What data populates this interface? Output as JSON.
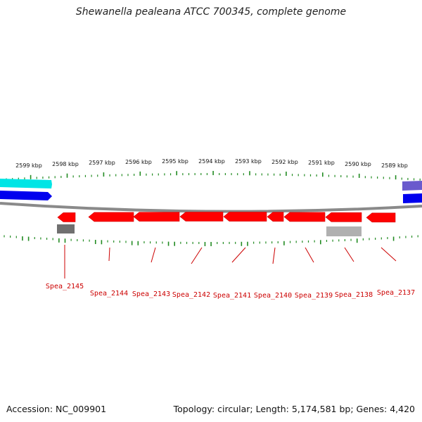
{
  "title": "Shewanella pealeana ATCC 700345, complete genome",
  "footer": {
    "accession": "Accession: NC_009901",
    "summary": "Topology: circular; Length: 5,174,581 bp; Genes: 4,420"
  },
  "colors": {
    "backbone": "#8a8a8a",
    "forward_gene": "#ff0000",
    "reverse_gene": "#ff0000",
    "ticks": "#228b22",
    "label": "#cc0000",
    "feature_cyan": "#00e5e5",
    "feature_blue": "#0000ee",
    "feature_slate": "#6a5acd",
    "feature_gray": "#707070",
    "feature_lightgray": "#b0b0b0"
  },
  "chart_data": {
    "type": "genome-map",
    "title": "Shewanella pealeana ATCC 700345, complete genome",
    "tick_labels": [
      "2599 kbp",
      "2598 kbp",
      "2597 kbp",
      "2596 kbp",
      "2595 kbp",
      "2594 kbp",
      "2593 kbp",
      "2592 kbp",
      "2591 kbp",
      "2590 kbp",
      "2589 kbp"
    ],
    "genes": [
      {
        "name": "Spea_2145",
        "strand": "reverse"
      },
      {
        "name": "Spea_2144",
        "strand": "reverse"
      },
      {
        "name": "Spea_2143",
        "strand": "reverse"
      },
      {
        "name": "Spea_2142",
        "strand": "reverse"
      },
      {
        "name": "Spea_2141",
        "strand": "reverse"
      },
      {
        "name": "Spea_2140",
        "strand": "reverse"
      },
      {
        "name": "Spea_2139",
        "strand": "reverse"
      },
      {
        "name": "Spea_2138",
        "strand": "reverse"
      },
      {
        "name": "Spea_2137",
        "strand": "reverse"
      }
    ]
  }
}
